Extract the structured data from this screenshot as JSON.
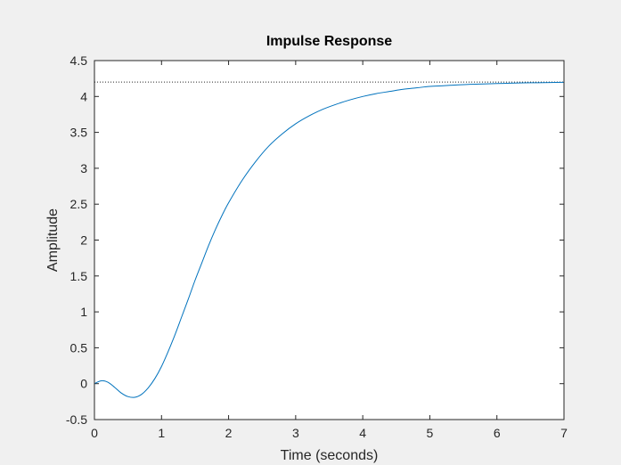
{
  "chart_data": {
    "type": "line",
    "title": "Impulse Response",
    "xlabel": "Time (seconds)",
    "ylabel": "Amplitude",
    "xlim": [
      0,
      7
    ],
    "ylim": [
      -0.5,
      4.5
    ],
    "xticks": [
      0,
      1,
      2,
      3,
      4,
      5,
      6,
      7
    ],
    "xtick_labels": [
      "0",
      "1",
      "2",
      "3",
      "4",
      "5",
      "6",
      "7"
    ],
    "yticks": [
      -0.5,
      0,
      0.5,
      1,
      1.5,
      2,
      2.5,
      3,
      3.5,
      4,
      4.5
    ],
    "ytick_labels": [
      "-0.5",
      "0",
      "0.5",
      "1",
      "1.5",
      "2",
      "2.5",
      "3",
      "3.5",
      "4",
      "4.5"
    ],
    "grid": false,
    "steady_state": 4.2,
    "series": [
      {
        "color": "#0072bd",
        "x": [
          0,
          0.1,
          0.2,
          0.3,
          0.4,
          0.5,
          0.6,
          0.7,
          0.8,
          0.9,
          1.0,
          1.1,
          1.2,
          1.3,
          1.4,
          1.5,
          1.6,
          1.7,
          1.8,
          1.9,
          2.0,
          2.2,
          2.4,
          2.6,
          2.8,
          3.0,
          3.2,
          3.4,
          3.6,
          3.8,
          4.0,
          4.2,
          4.4,
          4.6,
          4.8,
          5.0,
          5.2,
          5.4,
          5.6,
          5.8,
          6.0,
          6.2,
          6.4,
          6.6,
          6.8,
          7.0
        ],
        "y": [
          0,
          0.04,
          0.02,
          -0.05,
          -0.13,
          -0.18,
          -0.19,
          -0.15,
          -0.06,
          0.07,
          0.24,
          0.45,
          0.68,
          0.93,
          1.18,
          1.44,
          1.68,
          1.92,
          2.14,
          2.34,
          2.52,
          2.83,
          3.09,
          3.31,
          3.48,
          3.62,
          3.73,
          3.82,
          3.89,
          3.95,
          4.0,
          4.04,
          4.07,
          4.1,
          4.12,
          4.14,
          4.15,
          4.16,
          4.17,
          4.175,
          4.18,
          4.185,
          4.19,
          4.192,
          4.195,
          4.197
        ]
      }
    ]
  }
}
